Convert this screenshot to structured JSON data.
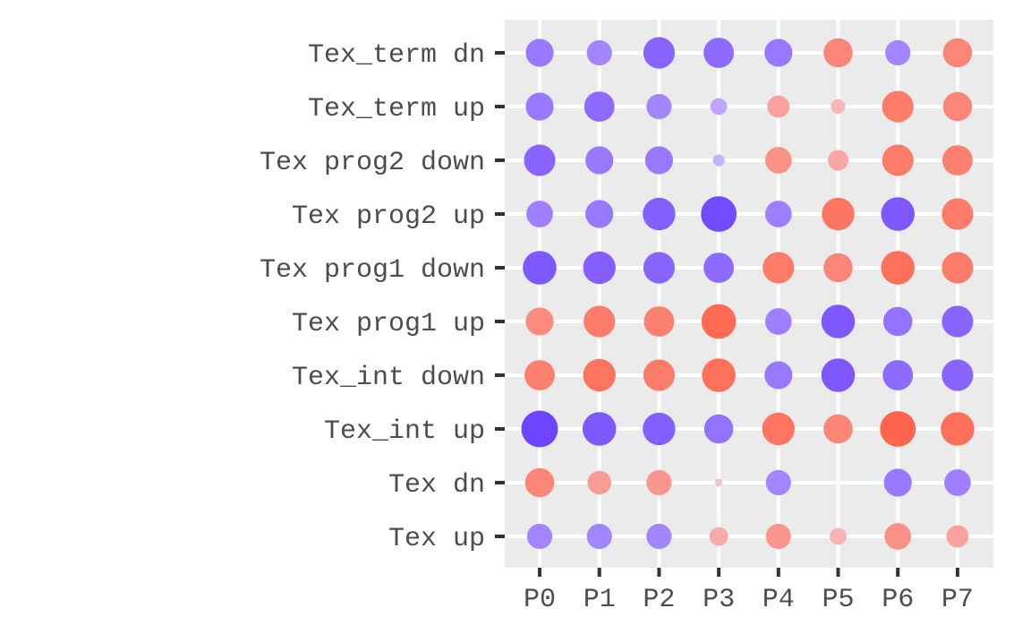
{
  "chart_data": {
    "type": "scatter",
    "subtype": "dot-matrix (bubble grid)",
    "title": "",
    "xlabel": "",
    "ylabel": "",
    "x_categories": [
      "P0",
      "P1",
      "P2",
      "P3",
      "P4",
      "P5",
      "P6",
      "P7"
    ],
    "y_categories": [
      "Tex_term dn",
      "Tex_term up",
      "Tex prog2 down",
      "Tex prog2 up",
      "Tex prog1 down",
      "Tex prog1 up",
      "Tex_int down",
      "Tex_int up",
      "Tex dn",
      "Tex up"
    ],
    "value_note": "color: blue/purple = negative, orange/red = positive; size = magnitude (normalized 0-1)",
    "rows": [
      {
        "label": "Tex_term dn",
        "values": [
          -0.55,
          -0.45,
          -0.7,
          -0.65,
          -0.55,
          0.6,
          -0.45,
          0.6
        ]
      },
      {
        "label": "Tex_term up",
        "values": [
          -0.55,
          -0.65,
          -0.45,
          -0.2,
          0.35,
          0.15,
          0.7,
          0.6
        ]
      },
      {
        "label": "Tex prog2 down",
        "values": [
          -0.7,
          -0.55,
          -0.55,
          -0.1,
          0.5,
          0.3,
          0.7,
          0.65
        ]
      },
      {
        "label": "Tex prog2 up",
        "values": [
          -0.5,
          -0.55,
          -0.75,
          -0.9,
          -0.5,
          0.75,
          -0.8,
          0.7
        ]
      },
      {
        "label": "Tex prog1 down",
        "values": [
          -0.8,
          -0.75,
          -0.7,
          -0.65,
          0.7,
          0.6,
          0.8,
          0.7
        ]
      },
      {
        "label": "Tex prog1 up",
        "values": [
          0.55,
          0.7,
          0.65,
          0.85,
          -0.5,
          -0.8,
          -0.6,
          -0.7
        ]
      },
      {
        "label": "Tex_int down",
        "values": [
          0.65,
          0.75,
          0.7,
          0.8,
          -0.55,
          -0.8,
          -0.65,
          -0.7
        ]
      },
      {
        "label": "Tex_int up",
        "values": [
          -0.95,
          -0.8,
          -0.75,
          -0.6,
          0.75,
          0.6,
          0.9,
          0.8
        ]
      },
      {
        "label": "Tex dn",
        "values": [
          0.6,
          0.4,
          0.45,
          0.04,
          -0.45,
          0.0,
          -0.55,
          -0.5
        ]
      },
      {
        "label": "Tex up",
        "values": [
          -0.45,
          -0.45,
          -0.45,
          0.25,
          0.45,
          0.2,
          0.5,
          0.35
        ]
      }
    ],
    "colors": {
      "panel_background": "#ebebeb",
      "grid": "#ffffff",
      "negative": "#6a3dff",
      "positive": "#ff5a3d",
      "neutral": "#f2ecff",
      "tick_text": "#4d4d4d",
      "tick_mark": "#333333"
    },
    "grid": true,
    "legend": "none"
  }
}
